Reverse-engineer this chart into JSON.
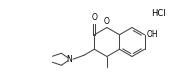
{
  "background_color": "#ffffff",
  "line_color": "#444444",
  "text_color": "#000000",
  "hcl_text": "HCl",
  "o_carbonyl": "O",
  "o_ring": "O",
  "oh_label": "OH",
  "n_label": "N",
  "figsize": [
    1.85,
    0.79
  ],
  "dpi": 100,
  "lw": 0.75
}
